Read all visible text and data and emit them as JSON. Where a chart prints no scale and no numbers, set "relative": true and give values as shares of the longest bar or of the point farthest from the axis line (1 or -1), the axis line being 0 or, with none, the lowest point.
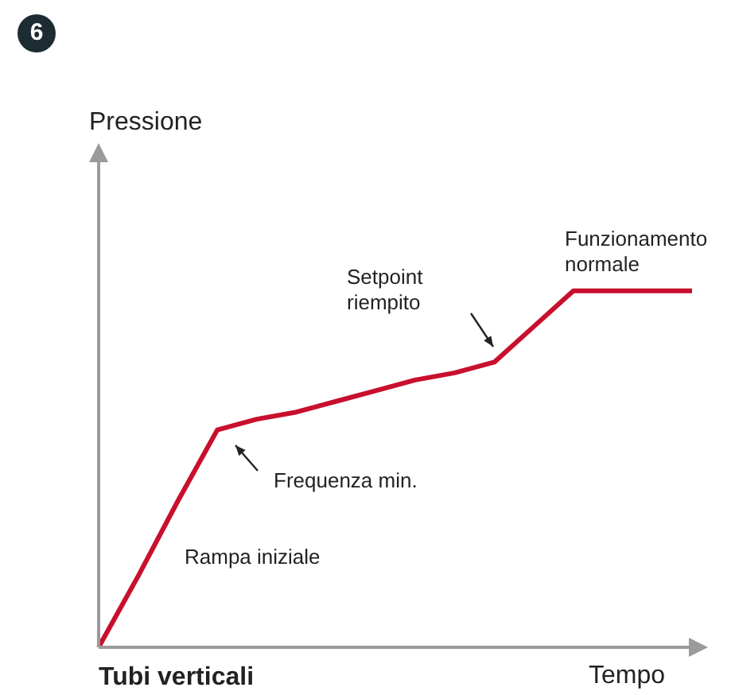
{
  "chart_data": {
    "type": "line",
    "relative": true,
    "xlabel": "Tempo",
    "tick_labels": false,
    "categories": [
      null,
      null,
      null,
      null,
      null,
      null,
      null,
      null,
      null,
      null,
      null,
      null,
      null,
      null,
      null,
      null
    ],
    "series": [
      {
        "color": "#c8102e",
        "values": [
          0,
          0.2,
          0.41,
          0.61,
          0.64,
          0.66,
          0.69,
          0.72,
          0.75,
          0.77,
          0.8,
          0.9,
          1,
          1,
          1,
          1
        ]
      }
    ],
    "annotations": [
      "6",
      "Setpoint\nriempito",
      "Funzionamento\nnormale",
      "Frequenza min.",
      "Rampa iniziale",
      "Tubi verticali",
      "Pressione"
    ]
  }
}
